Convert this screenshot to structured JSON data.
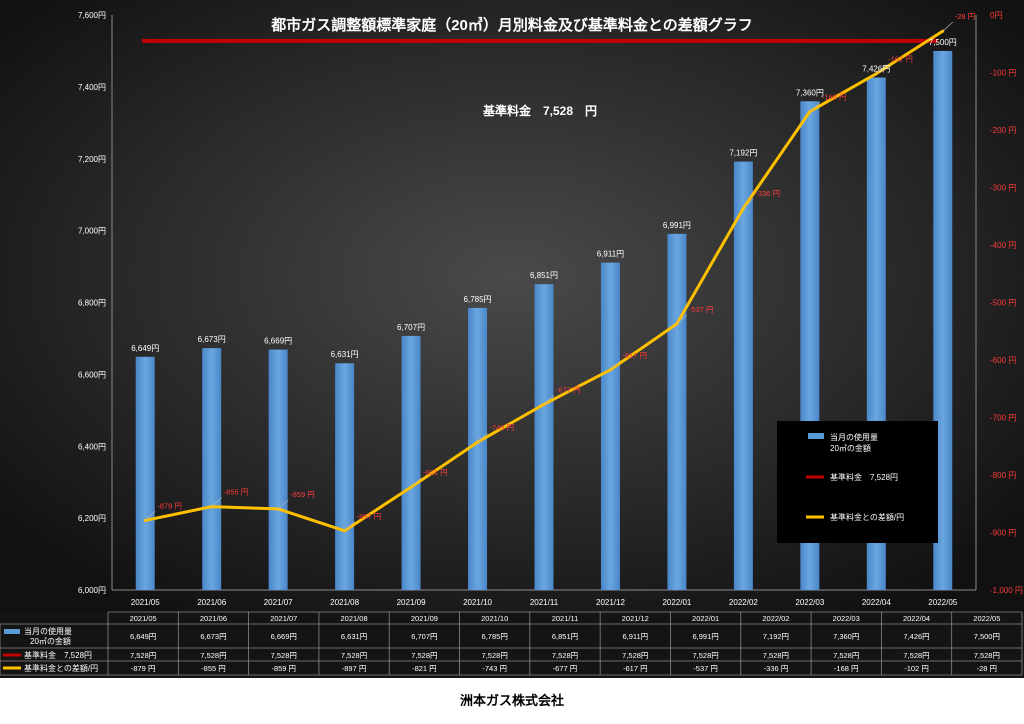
{
  "chart_data": {
    "type": "bar",
    "title": "都市ガス調整額標準家庭（20㎥）月別料金及び基準料金との差額グラフ",
    "annotation": "基準料金　7,528　円",
    "categories": [
      "2021/05",
      "2021/06",
      "2021/07",
      "2021/08",
      "2021/09",
      "2021/10",
      "2021/11",
      "2021/12",
      "2022/01",
      "2022/02",
      "2022/03",
      "2022/04",
      "2022/05"
    ],
    "y_left": {
      "min": 6000,
      "max": 7600,
      "step": 200,
      "suffix": "円"
    },
    "y_right": {
      "min": -1000,
      "max": 0,
      "step": 100,
      "suffix": "円"
    },
    "y_left_ticks": [
      "6,000円",
      "6,200円",
      "6,400円",
      "6,600円",
      "6,800円",
      "7,000円",
      "7,200円",
      "7,400円",
      "7,600円"
    ],
    "y_right_ticks": [
      "-1,000 円",
      "-900 円",
      "-800 円",
      "-700 円",
      "-600 円",
      "-500 円",
      "-400 円",
      "-300 円",
      "-200 円",
      "-100 円",
      "0円"
    ],
    "series": [
      {
        "name": "当月の使用量 20㎥の金額",
        "legend_lines": [
          "当月の使用量",
          "20㎥の金額"
        ],
        "table_lines": [
          "当月の使用量",
          "20㎥の金額"
        ],
        "type": "bar",
        "axis": "left",
        "color": "#5b9bd5",
        "values": [
          6649,
          6673,
          6669,
          6631,
          6707,
          6785,
          6851,
          6911,
          6991,
          7192,
          7360,
          7426,
          7500
        ],
        "labels": [
          "6,649円",
          "6,673円",
          "6,669円",
          "6,631円",
          "6,707円",
          "6,785円",
          "6,851円",
          "6,911円",
          "6,991円",
          "7,192円",
          "7,360円",
          "7,426円",
          "7,500円"
        ],
        "table_values": [
          "6,649円",
          "6,673円",
          "6,669円",
          "6,631円",
          "6,707円",
          "6,785円",
          "6,851円",
          "6,911円",
          "6,991円",
          "7,192円",
          "7,360円",
          "7,426円",
          "7,500円"
        ]
      },
      {
        "name": "基準料金　7,528円",
        "legend_label": "基準料金　7,528円",
        "table_label": "基準料金　7,528円",
        "type": "reference",
        "axis": "left",
        "value": 7528,
        "color": "#c00000",
        "table_values": [
          "7,528円",
          "7,528円",
          "7,528円",
          "7,528円",
          "7,528円",
          "7,528円",
          "7,528円",
          "7,528円",
          "7,528円",
          "7,528円",
          "7,528円",
          "7,528円",
          "7,528円"
        ]
      },
      {
        "name": "基準料金との差額/円",
        "legend_label": "基準料金との差額/円",
        "table_label": "基準料金との差額/円",
        "type": "line",
        "axis": "right",
        "color": "#ffc000",
        "values": [
          -879,
          -855,
          -859,
          -897,
          -821,
          -743,
          -677,
          -617,
          -537,
          -336,
          -168,
          -102,
          -28
        ],
        "labels": [
          "-879 円",
          "-855 円",
          "-859 円",
          "-897 円",
          "-821 円",
          "-743 円",
          "-677 円",
          "-617 円",
          "-537 円",
          "-336 円",
          "-168 円",
          "-102 円",
          "-28 円"
        ],
        "table_values": [
          "-879 円",
          "-855 円",
          "-859 円",
          "-897 円",
          "-821 円",
          "-743 円",
          "-677 円",
          "-617 円",
          "-537 円",
          "-336 円",
          "-168 円",
          "-102 円",
          "-28 円"
        ]
      }
    ],
    "legend_position": "right",
    "grid": false
  },
  "footer": {
    "company": "洲本ガス株式会社"
  },
  "colors": {
    "background_center": "#4a4a4a",
    "background_edge": "#111111",
    "red_text": "#ff3b3b"
  }
}
